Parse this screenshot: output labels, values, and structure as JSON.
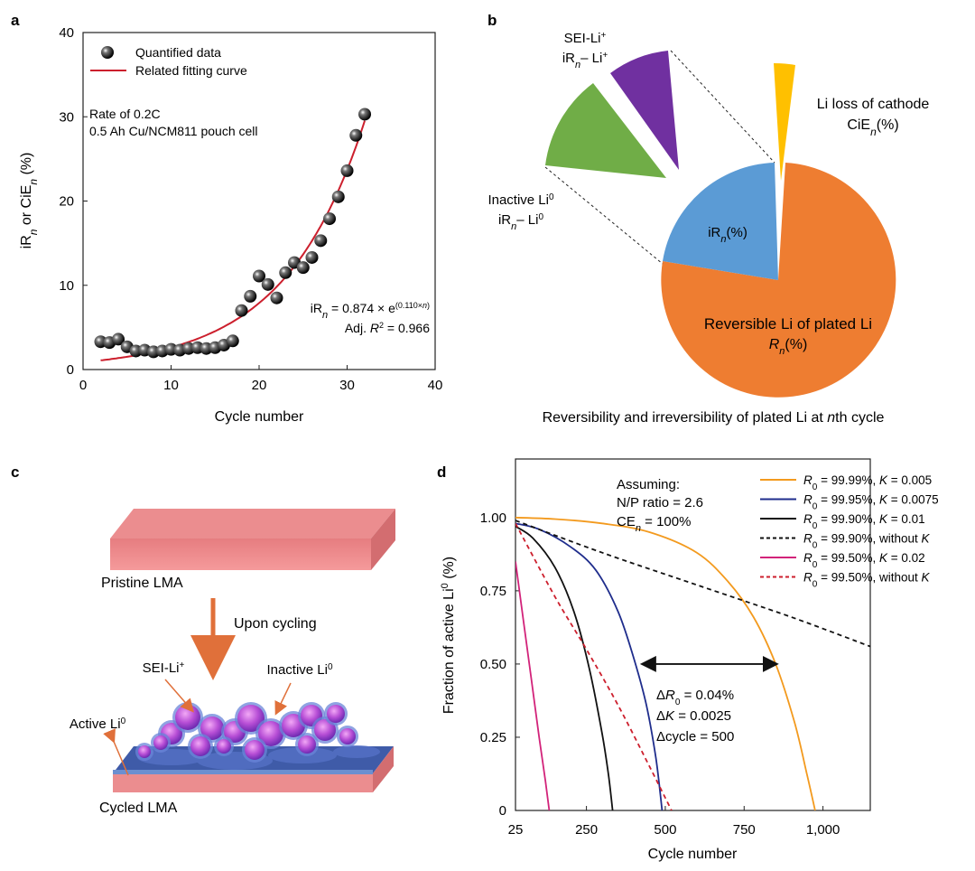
{
  "panels": {
    "a": "a",
    "b": "b",
    "c": "c",
    "d": "d"
  },
  "chart_data": [
    {
      "id": "a",
      "type": "scatter",
      "xlabel": "Cycle number",
      "ylabel": "iRn or CiEn (%)",
      "xlim": [
        0,
        40
      ],
      "ylim": [
        0,
        40
      ],
      "xticks": [
        "0",
        "10",
        "20",
        "30",
        "40"
      ],
      "yticks": [
        "0",
        "10",
        "20",
        "30",
        "40"
      ],
      "legend": [
        "Quantified data",
        "Related fitting curve"
      ],
      "annotation_lines": [
        "Rate of 0.2C",
        "0.5 Ah Cu/NCM811 pouch cell"
      ],
      "fit_equation": "iRn = 0.874 × e^(0.110×n)",
      "fit_r2": "Adj. R² = 0.966",
      "fit": {
        "a": 0.874,
        "b": 0.11,
        "x_range": [
          2,
          32
        ]
      },
      "series": [
        {
          "name": "Quantified data",
          "x": [
            2,
            3,
            4,
            5,
            6,
            7,
            8,
            9,
            10,
            11,
            12,
            13,
            14,
            15,
            16,
            17,
            18,
            19,
            20,
            21,
            22,
            23,
            24,
            25,
            26,
            27,
            28,
            29,
            30,
            31,
            32
          ],
          "y": [
            3.3,
            3.2,
            3.6,
            2.7,
            2.2,
            2.3,
            2.1,
            2.2,
            2.4,
            2.3,
            2.5,
            2.6,
            2.5,
            2.6,
            2.9,
            3.4,
            7.0,
            8.7,
            11.1,
            10.1,
            8.5,
            11.5,
            12.7,
            12.1,
            13.3,
            15.3,
            17.9,
            20.5,
            23.6,
            27.8,
            30.3
          ]
        }
      ],
      "colors": {
        "fit": "#cc1f2d",
        "points": "#111111"
      }
    },
    {
      "id": "b",
      "type": "pie",
      "title": "Reversibility and irreversibility of plated Li at nth cycle",
      "slices": [
        {
          "label": "Reversible Li of plated Li",
          "sublabel": "Rn(%)",
          "value": 72,
          "color": "#ee7d31"
        },
        {
          "label": "iRn(%)",
          "value": 25,
          "color": "#5b9bd5"
        },
        {
          "label": "Li loss of cathode",
          "sublabel": "CiEn(%)",
          "value": 3,
          "color": "#ffc000"
        }
      ],
      "breakout": [
        {
          "label": "SEI-Li+",
          "sublabel": "iRn– Li+",
          "color": "#7030a0"
        },
        {
          "label": "Inactive Li0",
          "sublabel": "iRn– Li0",
          "color": "#70ad47"
        }
      ]
    },
    {
      "id": "d",
      "type": "line",
      "xlabel": "Cycle number",
      "ylabel": "Fraction of active Li0 (%)",
      "xlim": [
        25,
        1150
      ],
      "ylim": [
        0,
        1.2
      ],
      "xticks": [
        "25",
        "250",
        "500",
        "750",
        "1,000"
      ],
      "yticks": [
        "0",
        "0.25",
        "0.50",
        "0.75",
        "1.00"
      ],
      "assumptions": [
        "Assuming:",
        "N/P ratio = 2.6",
        "CEn = 100%"
      ],
      "delta_labels": [
        "ΔR0 = 0.04%",
        "ΔK = 0.0025",
        "Δcycle = 500"
      ],
      "series": [
        {
          "name": "R0 = 99.99%, K = 0.005",
          "color": "#f39a1e",
          "dash": false,
          "x": [
            25,
            150,
            300,
            450,
            600,
            700,
            780,
            850,
            910,
            950,
            975
          ],
          "y": [
            1.0,
            0.995,
            0.98,
            0.95,
            0.88,
            0.78,
            0.66,
            0.5,
            0.3,
            0.12,
            0.0
          ]
        },
        {
          "name": "R0 = 99.95%, K = 0.0075",
          "color": "#1f2d8c",
          "dash": false,
          "x": [
            25,
            100,
            200,
            280,
            350,
            400,
            440,
            470,
            490
          ],
          "y": [
            0.98,
            0.96,
            0.9,
            0.82,
            0.68,
            0.52,
            0.36,
            0.18,
            0.0
          ]
        },
        {
          "name": "R0 = 99.90%, K = 0.01",
          "color": "#111111",
          "dash": false,
          "x": [
            25,
            80,
            150,
            210,
            260,
            300,
            320,
            333
          ],
          "y": [
            0.97,
            0.93,
            0.83,
            0.68,
            0.48,
            0.26,
            0.12,
            0.0
          ]
        },
        {
          "name": "R0 = 99.90%, without K",
          "color": "#111111",
          "dash": true,
          "x": [
            25,
            300,
            600,
            900,
            1150
          ],
          "y": [
            0.99,
            0.88,
            0.77,
            0.66,
            0.56
          ]
        },
        {
          "name": "R0 = 99.50%, K = 0.02",
          "color": "#d2237a",
          "dash": false,
          "x": [
            25,
            50,
            75,
            100,
            120,
            132
          ],
          "y": [
            0.85,
            0.65,
            0.45,
            0.25,
            0.1,
            0.0
          ]
        },
        {
          "name": "R0 = 99.50%, without K",
          "color": "#cc1f2d",
          "dash": true,
          "x": [
            25,
            150,
            250,
            350,
            450,
            520
          ],
          "y": [
            0.98,
            0.73,
            0.55,
            0.36,
            0.15,
            0.0
          ]
        }
      ],
      "arrow_range": [
        430,
        850
      ]
    }
  ],
  "panel_c": {
    "pristine_label": "Pristine LMA",
    "cycling_label": "Upon cycling",
    "sei_label": "SEI-Li+",
    "inactive_label": "Inactive Li0",
    "active_label": "Active Li0",
    "cycled_label": "Cycled LMA"
  }
}
